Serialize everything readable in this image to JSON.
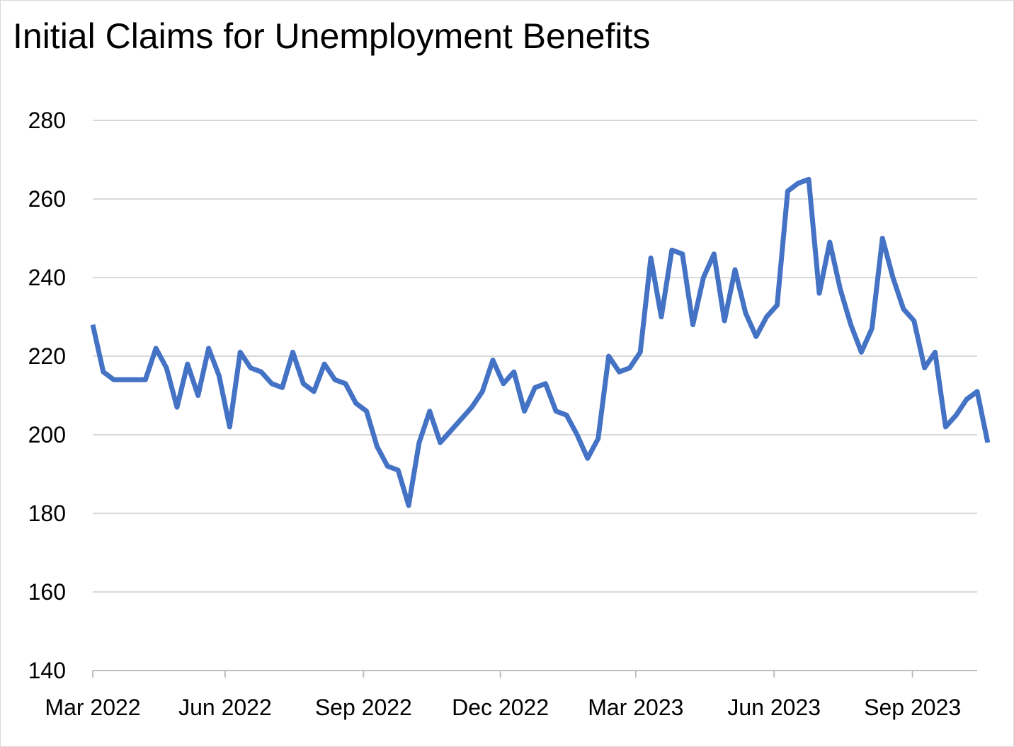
{
  "chart_data": {
    "type": "line",
    "title": "Initial Claims for Unemployment Benefits",
    "xlabel": "",
    "ylabel": "",
    "ylim": [
      140,
      280
    ],
    "yticks": [
      140,
      160,
      180,
      200,
      220,
      240,
      260,
      280
    ],
    "xlim": [
      "2022-03-05",
      "2023-10-14"
    ],
    "xticks": [
      {
        "date": "2022-03-01",
        "label": "Mar 2022"
      },
      {
        "date": "2022-06-01",
        "label": "Jun 2022"
      },
      {
        "date": "2022-09-01",
        "label": "Sep 2022"
      },
      {
        "date": "2022-12-01",
        "label": "Dec 2022"
      },
      {
        "date": "2023-03-01",
        "label": "Mar 2023"
      },
      {
        "date": "2023-06-01",
        "label": "Jun 2023"
      },
      {
        "date": "2023-09-01",
        "label": "Sep 2023"
      }
    ],
    "grid": true,
    "legend": "none",
    "line_color": "#4472c4",
    "series": [
      {
        "points": [
          [
            "2022-03-05",
            228
          ],
          [
            "2022-03-12",
            216
          ],
          [
            "2022-03-19",
            214
          ],
          [
            "2022-03-26",
            214
          ],
          [
            "2022-04-02",
            214
          ],
          [
            "2022-04-09",
            214
          ],
          [
            "2022-04-16",
            222
          ],
          [
            "2022-04-23",
            217
          ],
          [
            "2022-04-30",
            207
          ],
          [
            "2022-05-07",
            218
          ],
          [
            "2022-05-14",
            210
          ],
          [
            "2022-05-21",
            222
          ],
          [
            "2022-05-28",
            215
          ],
          [
            "2022-06-04",
            202
          ],
          [
            "2022-06-11",
            221
          ],
          [
            "2022-06-18",
            217
          ],
          [
            "2022-06-25",
            216
          ],
          [
            "2022-07-02",
            213
          ],
          [
            "2022-07-09",
            212
          ],
          [
            "2022-07-16",
            221
          ],
          [
            "2022-07-23",
            213
          ],
          [
            "2022-07-30",
            211
          ],
          [
            "2022-08-06",
            218
          ],
          [
            "2022-08-13",
            214
          ],
          [
            "2022-08-20",
            213
          ],
          [
            "2022-08-27",
            208
          ],
          [
            "2022-09-03",
            206
          ],
          [
            "2022-09-10",
            197
          ],
          [
            "2022-09-17",
            192
          ],
          [
            "2022-09-24",
            191
          ],
          [
            "2022-10-01",
            182
          ],
          [
            "2022-10-08",
            198
          ],
          [
            "2022-10-15",
            206
          ],
          [
            "2022-10-22",
            198
          ],
          [
            "2022-10-29",
            201
          ],
          [
            "2022-11-05",
            204
          ],
          [
            "2022-11-12",
            207
          ],
          [
            "2022-11-19",
            211
          ],
          [
            "2022-11-26",
            219
          ],
          [
            "2022-12-03",
            213
          ],
          [
            "2022-12-10",
            216
          ],
          [
            "2022-12-17",
            206
          ],
          [
            "2022-12-24",
            212
          ],
          [
            "2022-12-31",
            213
          ],
          [
            "2023-01-07",
            206
          ],
          [
            "2023-01-14",
            205
          ],
          [
            "2023-01-21",
            200
          ],
          [
            "2023-01-28",
            194
          ],
          [
            "2023-02-04",
            199
          ],
          [
            "2023-02-11",
            220
          ],
          [
            "2023-02-18",
            216
          ],
          [
            "2023-02-25",
            217
          ],
          [
            "2023-03-04",
            221
          ],
          [
            "2023-03-11",
            245
          ],
          [
            "2023-03-18",
            230
          ],
          [
            "2023-03-25",
            247
          ],
          [
            "2023-04-01",
            246
          ],
          [
            "2023-04-08",
            228
          ],
          [
            "2023-04-15",
            240
          ],
          [
            "2023-04-22",
            246
          ],
          [
            "2023-04-29",
            229
          ],
          [
            "2023-05-06",
            242
          ],
          [
            "2023-05-13",
            231
          ],
          [
            "2023-05-20",
            225
          ],
          [
            "2023-05-27",
            230
          ],
          [
            "2023-06-03",
            233
          ],
          [
            "2023-06-10",
            262
          ],
          [
            "2023-06-17",
            264
          ],
          [
            "2023-06-24",
            265
          ],
          [
            "2023-07-01",
            236
          ],
          [
            "2023-07-08",
            249
          ],
          [
            "2023-07-15",
            237
          ],
          [
            "2023-07-22",
            228
          ],
          [
            "2023-07-29",
            221
          ],
          [
            "2023-08-05",
            227
          ],
          [
            "2023-08-12",
            250
          ],
          [
            "2023-08-19",
            240
          ],
          [
            "2023-08-26",
            232
          ],
          [
            "2023-09-02",
            229
          ],
          [
            "2023-09-09",
            217
          ],
          [
            "2023-09-16",
            221
          ],
          [
            "2023-09-23",
            202
          ],
          [
            "2023-09-30",
            205
          ],
          [
            "2023-10-07",
            209
          ],
          [
            "2023-10-14",
            211
          ],
          [
            "2023-10-21",
            198
          ]
        ]
      }
    ]
  }
}
